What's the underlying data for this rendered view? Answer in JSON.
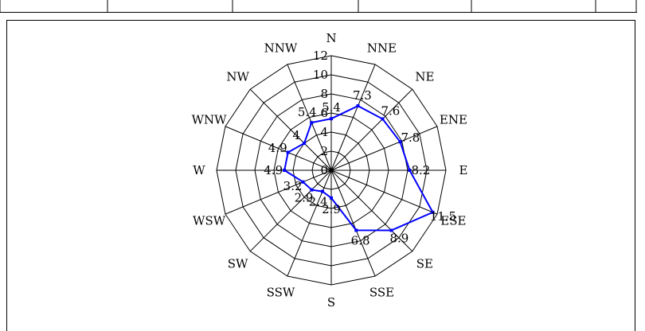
{
  "chart_data": {
    "type": "radar",
    "title": "",
    "directions": [
      "N",
      "NNE",
      "NE",
      "ENE",
      "E",
      "ESE",
      "SE",
      "SSE",
      "S",
      "SSW",
      "SW",
      "WSW",
      "W",
      "WNW",
      "NW",
      "NNW"
    ],
    "radial_ticks": [
      "0",
      "2",
      "4",
      "6",
      "8",
      "10",
      "12"
    ],
    "rlim": [
      0,
      12
    ],
    "grid": true,
    "series": [
      {
        "color": "#0000ff",
        "values": [
          5.4,
          7.3,
          7.6,
          7.8,
          8.2,
          11.5,
          8.9,
          6.8,
          2.9,
          2.4,
          2.9,
          3.2,
          4.9,
          4.9,
          4.0,
          5.4
        ],
        "labels": [
          "5.4",
          "7.3",
          "7.6",
          "7.8",
          "8.2",
          "11.5",
          "8.9",
          "6.8",
          "2.9",
          "2.4",
          "2.9",
          "3.2",
          "4.9",
          "4.9",
          "4",
          "5.4"
        ]
      }
    ]
  }
}
